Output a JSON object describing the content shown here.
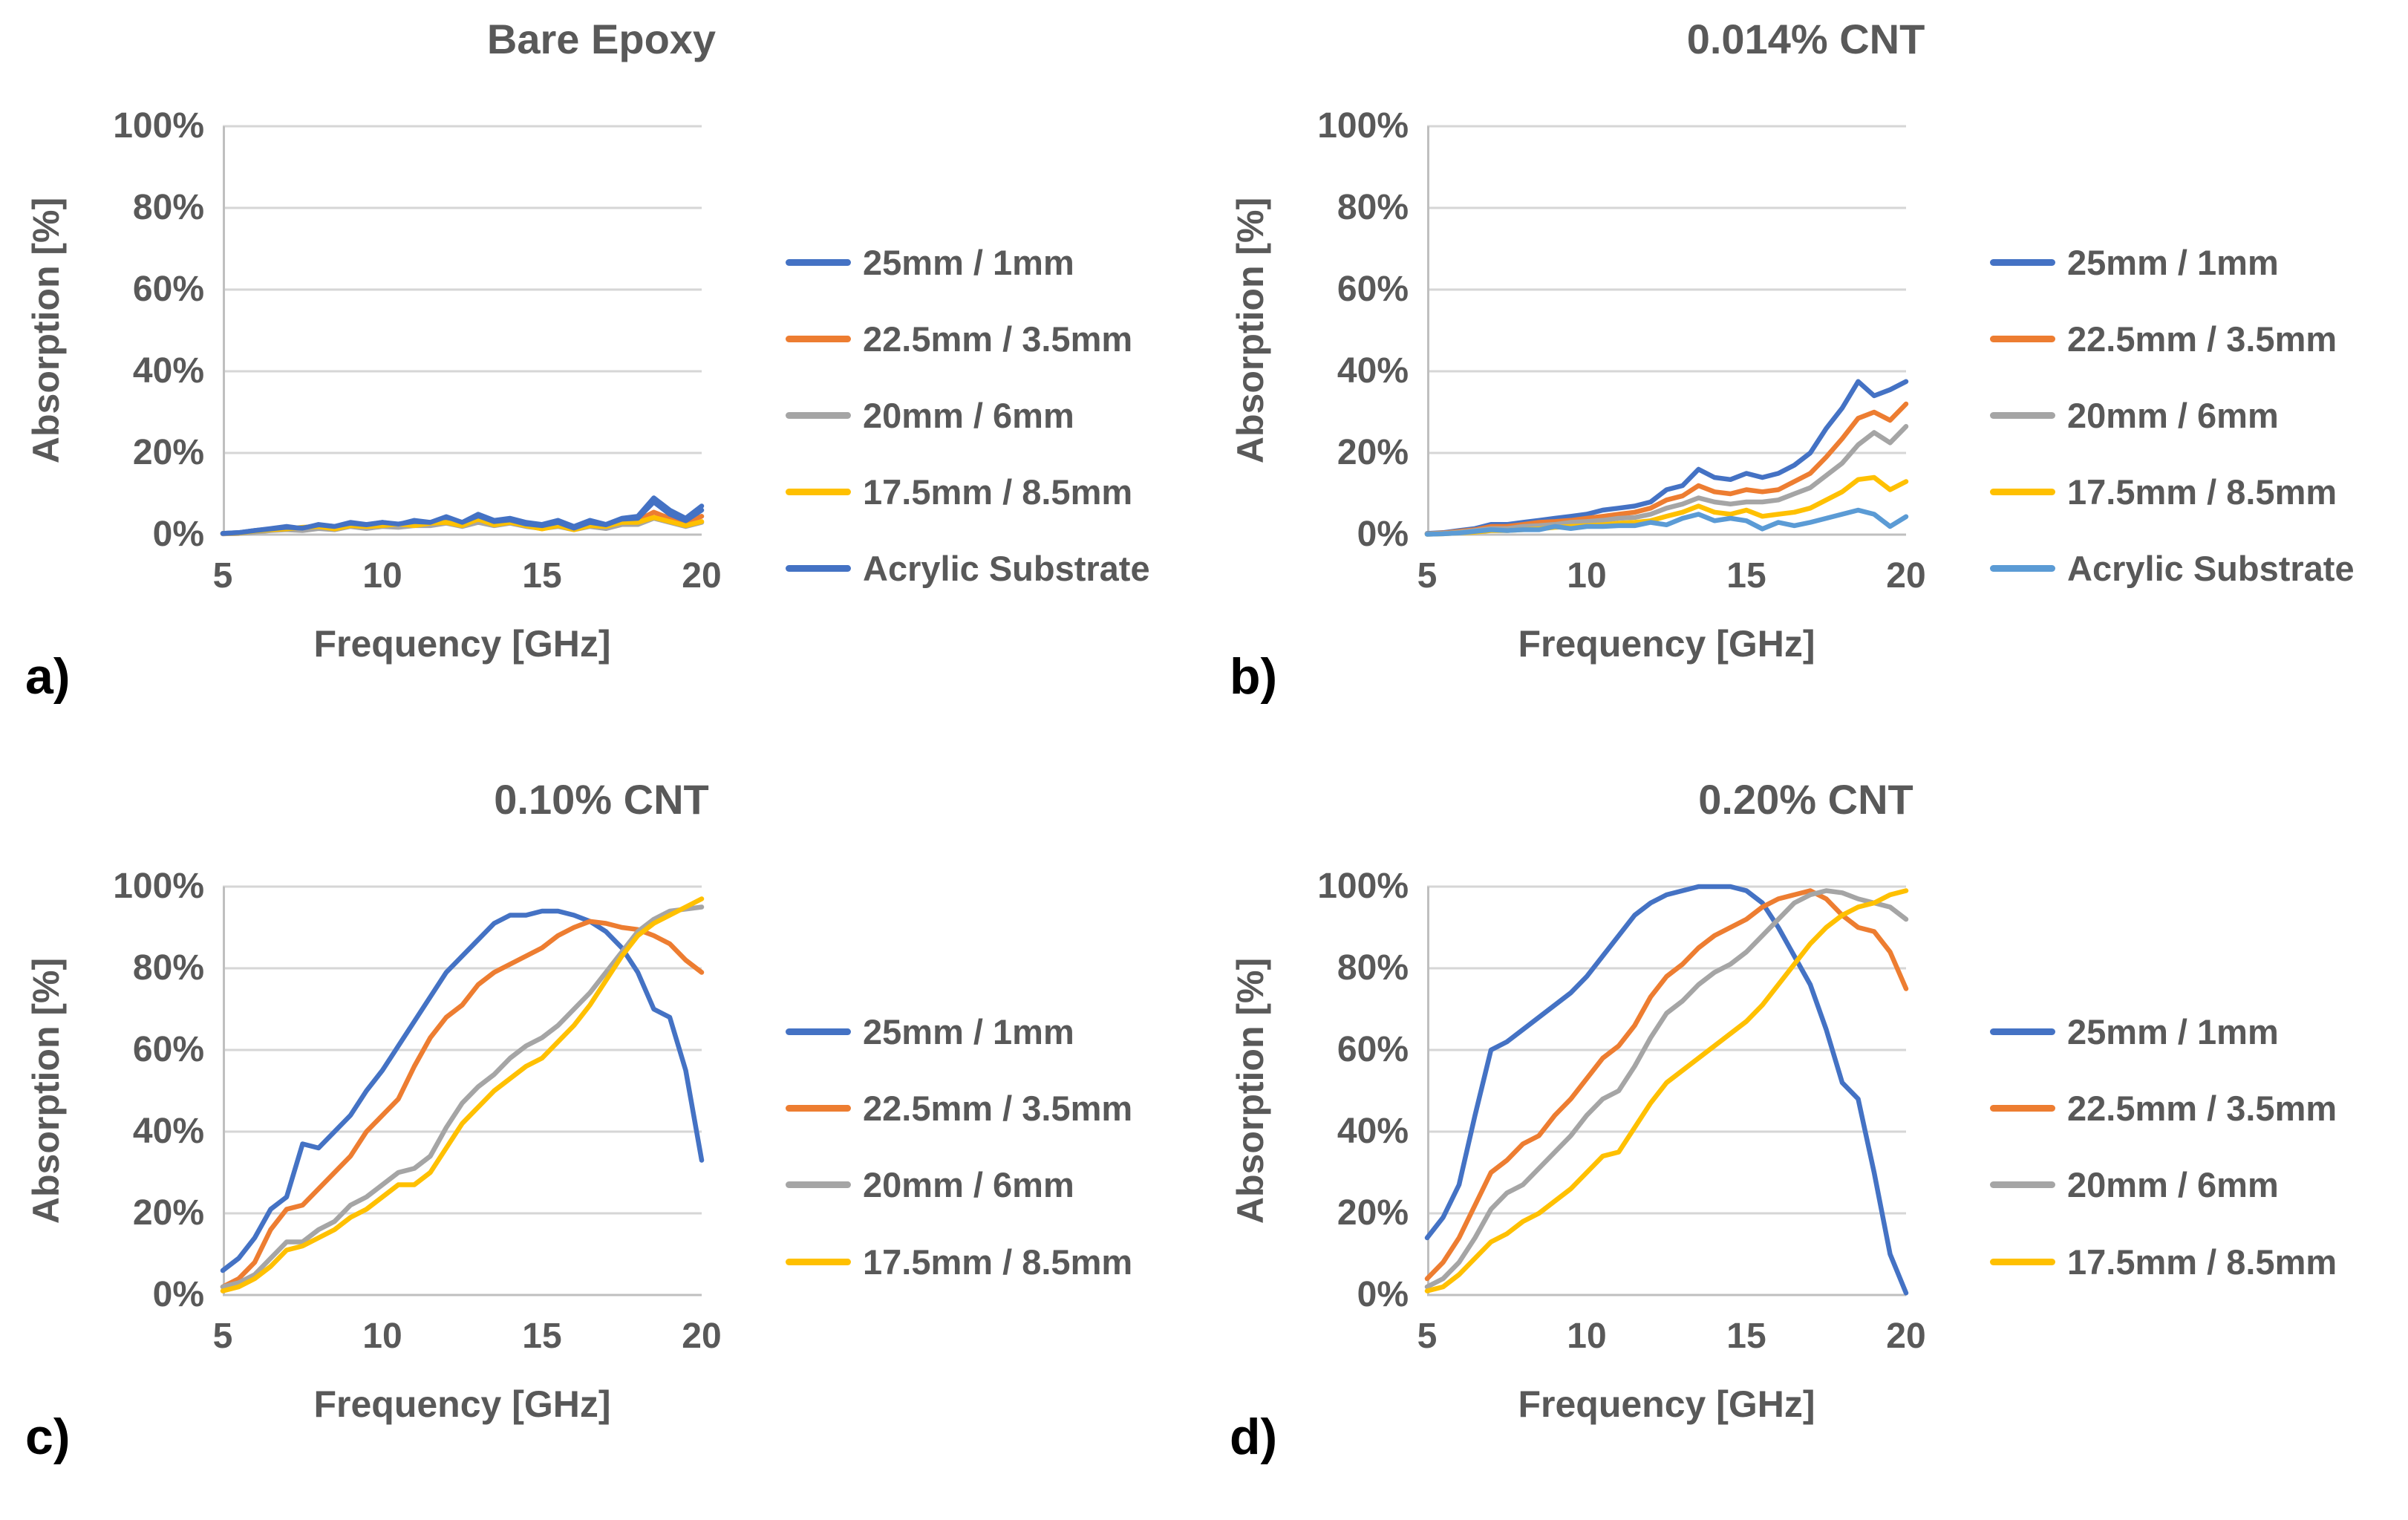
{
  "figure": {
    "background": "#FFFFFF",
    "text_color": "#595959",
    "letter_color": "#000000",
    "grid_color": "#D6D6D6",
    "axis_line_color": "#BFBFBF",
    "y_tick_labels": [
      "100%",
      "80%",
      "60%",
      "40%",
      "20%",
      "0%"
    ],
    "x_tick_labels": [
      "5",
      "10",
      "15",
      "20"
    ],
    "panels": [
      {
        "letter": "a)"
      },
      {
        "letter": "b)"
      },
      {
        "letter": "c)"
      },
      {
        "letter": "d)"
      }
    ]
  },
  "chart_data": [
    {
      "type": "line",
      "title": "Bare Epoxy",
      "xlabel": "Frequency [GHz]",
      "ylabel": "Absorption [%]",
      "xlim": [
        5,
        20
      ],
      "ylim": [
        0,
        100
      ],
      "x_ticks": [
        5,
        10,
        15,
        20
      ],
      "y_ticks": [
        0,
        20,
        40,
        60,
        80,
        100
      ],
      "grid": true,
      "legend_position": "right",
      "x": [
        5,
        5.5,
        6,
        6.5,
        7,
        7.5,
        8,
        8.5,
        9,
        9.5,
        10,
        10.5,
        11,
        11.5,
        12,
        12.5,
        13,
        13.5,
        14,
        14.5,
        15,
        15.5,
        16,
        16.5,
        17,
        17.5,
        18,
        18.5,
        19,
        19.5,
        20
      ],
      "series": [
        {
          "name": "25mm / 1mm",
          "color": "#4472C4",
          "values": [
            0.3,
            0.5,
            1,
            1.5,
            2,
            1.5,
            2.5,
            2,
            3,
            2.5,
            3,
            2.5,
            3.5,
            3,
            4,
            3,
            5,
            3.5,
            4,
            3,
            2.5,
            3.5,
            2,
            3.5,
            2.5,
            4,
            4.5,
            9,
            6,
            4,
            7
          ]
        },
        {
          "name": "22.5mm / 3.5mm",
          "color": "#ED7D31",
          "values": [
            0.2,
            0.3,
            0.8,
            1.2,
            1.5,
            1.2,
            2,
            1.5,
            2.2,
            2,
            2.5,
            2,
            2.5,
            2.8,
            3,
            2.2,
            4,
            3,
            3.2,
            2.2,
            2,
            2.5,
            1.5,
            2.5,
            2,
            3,
            3.5,
            5.5,
            4,
            3,
            4.5
          ]
        },
        {
          "name": "20mm / 6mm",
          "color": "#A5A5A5",
          "values": [
            0.2,
            0.3,
            0.6,
            1,
            1.2,
            1,
            1.5,
            1.2,
            2,
            1.5,
            2,
            1.8,
            2.2,
            2.2,
            2.8,
            2,
            3,
            2.2,
            2.8,
            2,
            1.5,
            2,
            1.2,
            2,
            1.5,
            2.5,
            2.5,
            4,
            3,
            2,
            3
          ]
        },
        {
          "name": "17.5mm / 8.5mm",
          "color": "#FFC000",
          "values": [
            0.3,
            0.4,
            0.9,
            1.2,
            1.4,
            1.8,
            2,
            1.4,
            2.2,
            2,
            2.2,
            2.6,
            2.2,
            2.8,
            3,
            2.2,
            3.8,
            2.4,
            3,
            2.2,
            1.4,
            2.2,
            1.2,
            2.2,
            2,
            3,
            3,
            4.2,
            3.2,
            2.2,
            3.2
          ]
        },
        {
          "name": "Acrylic Substrate",
          "color": "#4472C4",
          "values": [
            0.3,
            0.5,
            1,
            1.4,
            1.8,
            1.6,
            2.4,
            2,
            2.8,
            2.4,
            3,
            2.6,
            3.2,
            3,
            4.4,
            3,
            4.6,
            3.2,
            3.6,
            2.6,
            2.2,
            3,
            1.6,
            3,
            2.4,
            3.8,
            4,
            8,
            5,
            3.4,
            6
          ]
        }
      ]
    },
    {
      "type": "line",
      "title": "0.014% CNT",
      "xlabel": "Frequency [GHz]",
      "ylabel": "Absorption [%]",
      "xlim": [
        5,
        20
      ],
      "ylim": [
        0,
        100
      ],
      "x_ticks": [
        5,
        10,
        15,
        20
      ],
      "y_ticks": [
        0,
        20,
        40,
        60,
        80,
        100
      ],
      "grid": true,
      "legend_position": "right",
      "x": [
        5,
        5.5,
        6,
        6.5,
        7,
        7.5,
        8,
        8.5,
        9,
        9.5,
        10,
        10.5,
        11,
        11.5,
        12,
        12.5,
        13,
        13.5,
        14,
        14.5,
        15,
        15.5,
        16,
        16.5,
        17,
        17.5,
        18,
        18.5,
        19,
        19.5,
        20
      ],
      "series": [
        {
          "name": "25mm / 1mm",
          "color": "#4472C4",
          "values": [
            0.3,
            0.5,
            1,
            1.5,
            2.5,
            2.5,
            3,
            3.5,
            4,
            4.5,
            5,
            6,
            6.5,
            7,
            8,
            11,
            12,
            16,
            14,
            13.5,
            15,
            14,
            15,
            17,
            20,
            26,
            31,
            37.5,
            34,
            35.5,
            37.5
          ]
        },
        {
          "name": "22.5mm / 3.5mm",
          "color": "#ED7D31",
          "values": [
            0.2,
            0.4,
            0.8,
            1.2,
            2,
            2,
            2.5,
            3,
            3.2,
            3.5,
            4,
            4.5,
            5,
            5.5,
            6.5,
            8.5,
            9.5,
            12,
            10.5,
            10,
            11,
            10.5,
            11,
            13,
            15,
            19,
            23.5,
            28.5,
            30,
            28,
            32
          ]
        },
        {
          "name": "20mm / 6mm",
          "color": "#A5A5A5",
          "values": [
            0.2,
            0.3,
            0.6,
            1,
            1.5,
            1.5,
            2,
            2.2,
            2.5,
            3,
            3.2,
            3.5,
            4,
            4.2,
            5,
            6.5,
            7.5,
            9,
            8,
            7.5,
            8,
            8,
            8.5,
            10,
            11.5,
            14.5,
            17.5,
            22,
            25,
            22.5,
            26.5
          ]
        },
        {
          "name": "17.5mm / 8.5mm",
          "color": "#FFC000",
          "values": [
            0.1,
            0.2,
            0.4,
            0.6,
            1,
            1,
            1.2,
            1.4,
            1.8,
            2,
            2.2,
            2.4,
            2.8,
            3,
            3.4,
            4.5,
            5.5,
            7,
            5.5,
            5,
            6,
            4.5,
            5,
            5.5,
            6.5,
            8.5,
            10.5,
            13.5,
            14,
            11,
            13
          ]
        },
        {
          "name": "Acrylic Substrate",
          "color": "#5B9BD5",
          "values": [
            0.1,
            0.2,
            0.4,
            0.8,
            1.2,
            1,
            1.2,
            1.2,
            2,
            1.5,
            2,
            2,
            2.2,
            2.2,
            3,
            2.4,
            4,
            5,
            3.4,
            4,
            3.4,
            1.4,
            3,
            2.2,
            3,
            4,
            5,
            6,
            5,
            2,
            4.4
          ]
        }
      ]
    },
    {
      "type": "line",
      "title": "0.10% CNT",
      "xlabel": "Frequency [GHz]",
      "ylabel": "Absorption [%]",
      "xlim": [
        5,
        20
      ],
      "ylim": [
        0,
        100
      ],
      "x_ticks": [
        5,
        10,
        15,
        20
      ],
      "y_ticks": [
        0,
        20,
        40,
        60,
        80,
        100
      ],
      "grid": true,
      "legend_position": "right",
      "x": [
        5,
        5.5,
        6,
        6.5,
        7,
        7.5,
        8,
        8.5,
        9,
        9.5,
        10,
        10.5,
        11,
        11.5,
        12,
        12.5,
        13,
        13.5,
        14,
        14.5,
        15,
        15.5,
        16,
        16.5,
        17,
        17.5,
        18,
        18.5,
        19,
        19.5,
        20
      ],
      "series": [
        {
          "name": "25mm / 1mm",
          "color": "#4472C4",
          "values": [
            6,
            9,
            14,
            21,
            24,
            37,
            36,
            40,
            44,
            50,
            55,
            61,
            67,
            73,
            79,
            83,
            87,
            91,
            93,
            93,
            94,
            94,
            93,
            91.5,
            89,
            85,
            79,
            70,
            68,
            55,
            33
          ]
        },
        {
          "name": "22.5mm / 3.5mm",
          "color": "#ED7D31",
          "values": [
            2,
            4,
            8,
            16,
            21,
            22,
            26,
            30,
            34,
            40,
            44,
            48,
            56,
            63,
            68,
            71,
            76,
            79,
            81,
            83,
            85,
            88,
            90,
            91.5,
            91,
            90,
            89.5,
            88,
            86,
            82,
            79
          ]
        },
        {
          "name": "20mm / 6mm",
          "color": "#A5A5A5",
          "values": [
            2,
            3,
            5,
            9,
            13,
            13,
            16,
            18,
            22,
            24,
            27,
            30,
            31,
            34,
            41,
            47,
            51,
            54,
            58,
            61,
            63,
            66,
            70,
            74,
            79,
            84,
            89,
            92,
            94,
            94.5,
            95
          ]
        },
        {
          "name": "17.5mm / 8.5mm",
          "color": "#FFC000",
          "values": [
            1,
            2,
            4,
            7,
            11,
            12,
            14,
            16,
            19,
            21,
            24,
            27,
            27,
            30,
            36,
            42,
            46,
            50,
            53,
            56,
            58,
            62,
            66,
            71,
            77,
            83,
            88,
            91,
            93,
            95,
            97
          ]
        }
      ]
    },
    {
      "type": "line",
      "title": "0.20% CNT",
      "xlabel": "Frequency [GHz]",
      "ylabel": "Absorption [%]",
      "xlim": [
        5,
        20
      ],
      "ylim": [
        0,
        100
      ],
      "x_ticks": [
        5,
        10,
        15,
        20
      ],
      "y_ticks": [
        0,
        20,
        40,
        60,
        80,
        100
      ],
      "grid": true,
      "legend_position": "right",
      "x": [
        5,
        5.5,
        6,
        6.5,
        7,
        7.5,
        8,
        8.5,
        9,
        9.5,
        10,
        10.5,
        11,
        11.5,
        12,
        12.5,
        13,
        13.5,
        14,
        14.5,
        15,
        15.5,
        16,
        16.5,
        17,
        17.5,
        18,
        18.5,
        19,
        19.5,
        20
      ],
      "series": [
        {
          "name": "25mm / 1mm",
          "color": "#4472C4",
          "values": [
            14,
            19,
            27,
            44,
            60,
            62,
            65,
            68,
            71,
            74,
            78,
            83,
            88,
            93,
            96,
            98,
            99,
            100,
            100,
            100,
            99,
            96,
            90,
            83,
            76,
            65,
            52,
            48,
            30,
            10,
            0.5
          ]
        },
        {
          "name": "22.5mm / 3.5mm",
          "color": "#ED7D31",
          "values": [
            4,
            8,
            14,
            22,
            30,
            33,
            37,
            39,
            44,
            48,
            53,
            58,
            61,
            66,
            73,
            78,
            81,
            85,
            88,
            90,
            92,
            95,
            97,
            98,
            99,
            97,
            93,
            90,
            89,
            84,
            75
          ]
        },
        {
          "name": "20mm / 6mm",
          "color": "#A5A5A5",
          "values": [
            2,
            4,
            8,
            14,
            21,
            25,
            27,
            31,
            35,
            39,
            44,
            48,
            50,
            56,
            63,
            69,
            72,
            76,
            79,
            81,
            84,
            88,
            92,
            96,
            98,
            99,
            98.5,
            97,
            96,
            95,
            92
          ]
        },
        {
          "name": "17.5mm / 8.5mm",
          "color": "#FFC000",
          "values": [
            1,
            2,
            5,
            9,
            13,
            15,
            18,
            20,
            23,
            26,
            30,
            34,
            35,
            41,
            47,
            52,
            55,
            58,
            61,
            64,
            67,
            71,
            76,
            81,
            86,
            90,
            93,
            95,
            96,
            98,
            99
          ]
        }
      ]
    }
  ]
}
